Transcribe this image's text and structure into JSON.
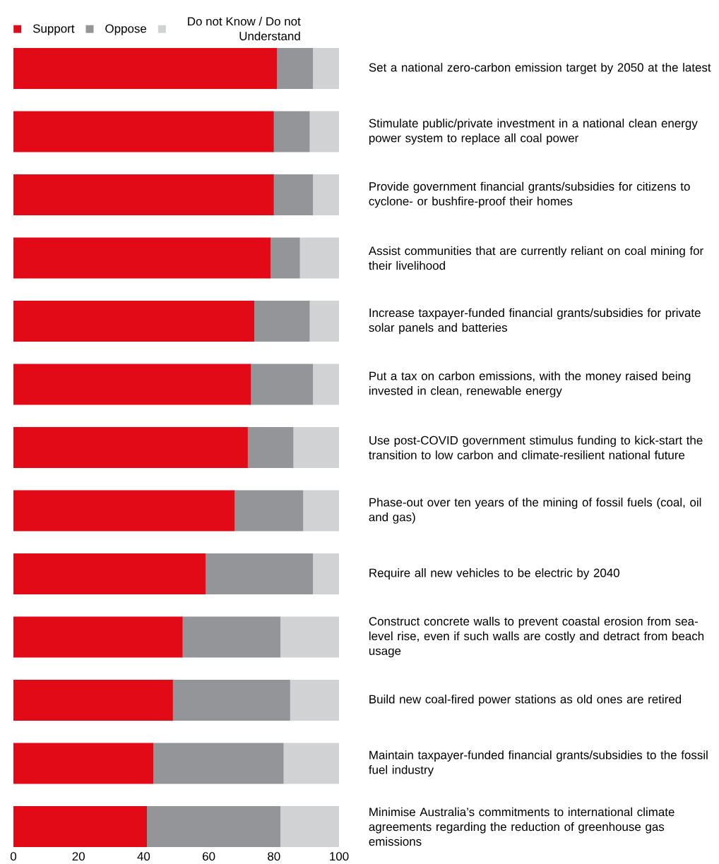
{
  "chart_data": {
    "type": "bar",
    "orientation": "horizontal",
    "stacked": true,
    "categories": [
      "Set a national zero-carbon emission target by 2050 at the latest",
      "Stimulate public/private investment in a national clean energy power system to replace all coal power",
      "Provide government financial grants/subsidies for citizens to cyclone- or bushfire-proof their homes",
      "Assist communities that are currently reliant on coal mining for their livelihood",
      "Increase taxpayer-funded financial grants/subsidies for private solar panels and batteries",
      "Put a tax on carbon emissions, with the money raised being invested in clean, renewable energy",
      "Use post-COVID government stimulus funding to kick-start the transition to low carbon and climate-resilient national future",
      "Phase-out over ten years of the mining of fossil fuels (coal, oil and gas)",
      "Require all new vehicles to be electric by 2040",
      "Construct concrete walls to prevent coastal erosion from sea-level rise, even if such walls are costly and detract from beach usage",
      "Build new coal-fired power stations as old ones are retired",
      "Maintain taxpayer-funded financial grants/subsidies to the fossil fuel industry",
      "Minimise Australia’s commitments to international climate agreements regarding the reduction of greenhouse gas emissions"
    ],
    "series": [
      {
        "name": "Support",
        "color": "#e20a16",
        "values": [
          81,
          80,
          80,
          79,
          74,
          73,
          72,
          68,
          59,
          52,
          49,
          43,
          41
        ]
      },
      {
        "name": "Oppose",
        "color": "#939598",
        "values": [
          11,
          11,
          12,
          9,
          17,
          19,
          14,
          21,
          33,
          30,
          36,
          40,
          41
        ]
      },
      {
        "name": "Do not Know / Do not Understand",
        "color": "#d1d2d4",
        "values": [
          8,
          9,
          8,
          12,
          9,
          8,
          14,
          11,
          8,
          18,
          15,
          17,
          18
        ]
      }
    ],
    "xlim": [
      0,
      100
    ],
    "xticks": [
      0,
      20,
      40,
      60,
      80,
      100
    ],
    "legend": "top left"
  }
}
